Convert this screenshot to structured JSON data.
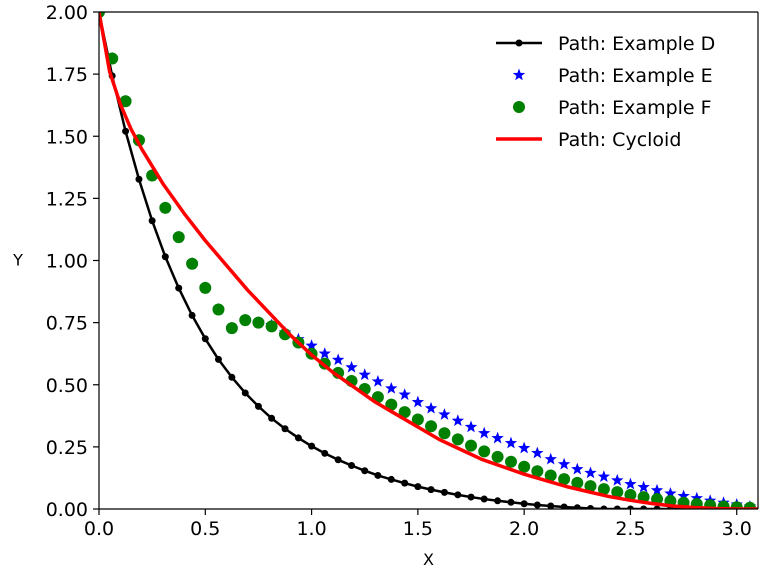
{
  "chart_data": {
    "type": "line",
    "title": "",
    "xlabel": "X",
    "ylabel": "Y",
    "xlim": [
      0.0,
      3.1
    ],
    "ylim": [
      0.0,
      2.0
    ],
    "grid": false,
    "legend_position": "top-right",
    "x_ticks": [
      {
        "value": 0.0,
        "label": "0.0"
      },
      {
        "value": 0.5,
        "label": "0.5"
      },
      {
        "value": 1.0,
        "label": "1.0"
      },
      {
        "value": 1.5,
        "label": "1.5"
      },
      {
        "value": 2.0,
        "label": "2.0"
      },
      {
        "value": 2.5,
        "label": "2.5"
      },
      {
        "value": 3.0,
        "label": "3.0"
      }
    ],
    "y_ticks": [
      {
        "value": 0.0,
        "label": "0.00"
      },
      {
        "value": 0.25,
        "label": "0.25"
      },
      {
        "value": 0.5,
        "label": "0.50"
      },
      {
        "value": 0.75,
        "label": "0.75"
      },
      {
        "value": 1.0,
        "label": "1.00"
      },
      {
        "value": 1.25,
        "label": "1.25"
      },
      {
        "value": 1.5,
        "label": "1.50"
      },
      {
        "value": 1.75,
        "label": "1.75"
      },
      {
        "value": 2.0,
        "label": "2.00"
      }
    ],
    "series": [
      {
        "name": "Path: Example D",
        "style": "line-dot",
        "color": "#000000",
        "x": [
          0.0,
          0.062,
          0.125,
          0.188,
          0.25,
          0.312,
          0.375,
          0.438,
          0.5,
          0.562,
          0.625,
          0.688,
          0.75,
          0.812,
          0.875,
          0.938,
          1.0,
          1.062,
          1.125,
          1.188,
          1.25,
          1.312,
          1.375,
          1.438,
          1.5,
          1.562,
          1.625,
          1.688,
          1.75,
          1.812,
          1.875,
          1.938,
          2.0,
          2.062,
          2.125,
          2.188,
          2.25,
          2.312,
          2.375,
          2.438,
          2.5,
          2.562,
          2.625,
          2.688,
          2.75,
          2.812,
          2.875,
          2.938,
          3.0,
          3.062
        ],
        "y": [
          2.0,
          1.743,
          1.52,
          1.327,
          1.16,
          1.015,
          0.889,
          0.779,
          0.685,
          0.602,
          0.53,
          0.467,
          0.413,
          0.365,
          0.323,
          0.286,
          0.253,
          0.224,
          0.198,
          0.175,
          0.154,
          0.135,
          0.119,
          0.104,
          0.09,
          0.078,
          0.067,
          0.057,
          0.048,
          0.04,
          0.033,
          0.027,
          0.021,
          0.016,
          0.012,
          0.008,
          0.005,
          0.002,
          0.0,
          0.0,
          0.0,
          0.0,
          0.0,
          0.0,
          0.0,
          0.0,
          0.0,
          0.0,
          0.0,
          0.0
        ]
      },
      {
        "name": "Path: Example E",
        "style": "star",
        "color": "#0000ff",
        "x": [
          0.0,
          0.062,
          0.125,
          0.188,
          0.25,
          0.312,
          0.375,
          0.438,
          0.5,
          0.562,
          0.625,
          0.688,
          0.75,
          0.812,
          0.875,
          0.938,
          1.0,
          1.062,
          1.125,
          1.188,
          1.25,
          1.312,
          1.375,
          1.438,
          1.5,
          1.562,
          1.625,
          1.688,
          1.75,
          1.812,
          1.875,
          1.938,
          2.0,
          2.062,
          2.125,
          2.188,
          2.25,
          2.312,
          2.375,
          2.438,
          2.5,
          2.562,
          2.625,
          2.688,
          2.75,
          2.812,
          2.875,
          2.938,
          3.0,
          3.062
        ],
        "y": [
          2.0,
          1.813,
          1.641,
          1.484,
          1.342,
          1.212,
          1.094,
          0.987,
          0.89,
          0.803,
          0.728,
          0.76,
          0.75,
          0.74,
          0.71,
          0.683,
          0.657,
          0.625,
          0.6,
          0.57,
          0.54,
          0.513,
          0.485,
          0.46,
          0.43,
          0.405,
          0.38,
          0.355,
          0.33,
          0.305,
          0.285,
          0.265,
          0.245,
          0.225,
          0.2,
          0.18,
          0.16,
          0.145,
          0.13,
          0.115,
          0.1,
          0.088,
          0.075,
          0.062,
          0.052,
          0.043,
          0.033,
          0.025,
          0.018,
          0.01
        ]
      },
      {
        "name": "Path: Example F",
        "style": "circle",
        "color": "#008000",
        "x": [
          0.0,
          0.062,
          0.125,
          0.188,
          0.25,
          0.312,
          0.375,
          0.438,
          0.5,
          0.562,
          0.625,
          0.688,
          0.75,
          0.812,
          0.875,
          0.938,
          1.0,
          1.062,
          1.125,
          1.188,
          1.25,
          1.312,
          1.375,
          1.438,
          1.5,
          1.562,
          1.625,
          1.688,
          1.75,
          1.812,
          1.875,
          1.938,
          2.0,
          2.062,
          2.125,
          2.188,
          2.25,
          2.312,
          2.375,
          2.438,
          2.5,
          2.562,
          2.625,
          2.688,
          2.75,
          2.812,
          2.875,
          2.938,
          3.0,
          3.062
        ],
        "y": [
          2.0,
          1.813,
          1.641,
          1.484,
          1.342,
          1.212,
          1.094,
          0.987,
          0.89,
          0.803,
          0.728,
          0.76,
          0.75,
          0.735,
          0.703,
          0.67,
          0.625,
          0.585,
          0.548,
          0.515,
          0.483,
          0.45,
          0.42,
          0.39,
          0.36,
          0.333,
          0.305,
          0.28,
          0.255,
          0.232,
          0.21,
          0.19,
          0.17,
          0.152,
          0.135,
          0.12,
          0.105,
          0.092,
          0.08,
          0.068,
          0.057,
          0.048,
          0.04,
          0.032,
          0.025,
          0.02,
          0.015,
          0.01,
          0.007,
          0.005
        ]
      },
      {
        "name": "Path: Cycloid",
        "style": "line",
        "color": "#ff0000",
        "x": [
          0.0,
          0.05,
          0.1,
          0.15,
          0.2,
          0.25,
          0.3,
          0.4,
          0.5,
          0.6,
          0.7,
          0.8,
          0.9,
          1.0,
          1.1,
          1.2,
          1.3,
          1.4,
          1.5,
          1.6,
          1.7,
          1.8,
          1.9,
          2.0,
          2.1,
          2.2,
          2.3,
          2.4,
          2.5,
          2.6,
          2.7,
          2.8,
          2.9,
          3.0,
          3.1
        ],
        "y": [
          2.0,
          1.76,
          1.63,
          1.53,
          1.45,
          1.38,
          1.31,
          1.19,
          1.08,
          0.98,
          0.88,
          0.79,
          0.7,
          0.62,
          0.55,
          0.49,
          0.43,
          0.38,
          0.33,
          0.28,
          0.24,
          0.2,
          0.17,
          0.14,
          0.115,
          0.09,
          0.07,
          0.05,
          0.035,
          0.022,
          0.012,
          0.006,
          0.002,
          0.0,
          0.0
        ]
      }
    ]
  }
}
